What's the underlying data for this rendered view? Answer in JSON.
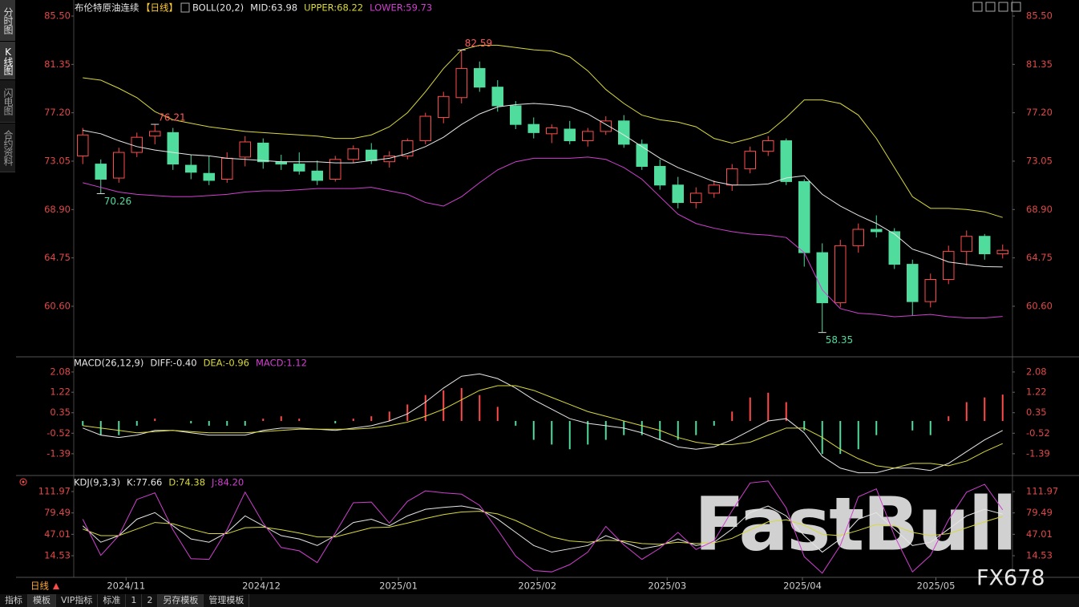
{
  "sidebar": [
    "分时图",
    "K线图",
    "闪电图",
    "合约资料"
  ],
  "period": "日线",
  "toolbar": [
    "指标",
    "模板",
    "VIP指标",
    "标准",
    "1",
    "2",
    "另存模板",
    "管理模板"
  ],
  "watermark": [
    "FastBull",
    "FX678"
  ],
  "chart_data": [
    {
      "type": "candlestick",
      "title": "布伦特原油连续",
      "subtitle": "【日线】",
      "indicator": "BOLL(20,2)",
      "up_color": "#ff4a4a",
      "down_color": "#4fdc9c",
      "xlim": [
        -0.5,
        51.5
      ],
      "ylim": [
        56.4,
        85.5
      ],
      "yticks": [
        {
          "value": 85.5,
          "label": "85.50"
        },
        81.35,
        {
          "value": 77.2,
          "label": "77.20"
        },
        73.05,
        {
          "value": 68.9,
          "label": "68.90"
        },
        64.75,
        {
          "value": 60.6,
          "label": "60.60"
        }
      ],
      "annotations": [
        82.59,
        76.21,
        70.26,
        58.35
      ],
      "candles": [
        [
          73.5,
          75.9,
          72.8,
          75.3
        ],
        [
          72.8,
          73.2,
          70.26,
          71.5
        ],
        [
          71.6,
          74.2,
          71.2,
          73.8
        ],
        [
          73.8,
          75.5,
          73.4,
          75.1
        ],
        [
          75.2,
          76.21,
          74.5,
          75.6
        ],
        [
          75.5,
          75.9,
          72.3,
          72.8
        ],
        [
          72.7,
          73.6,
          71.5,
          72.1
        ],
        [
          72.0,
          73.5,
          71.0,
          71.4
        ],
        [
          71.5,
          73.8,
          71.2,
          73.3
        ],
        [
          73.4,
          75.2,
          72.6,
          74.7
        ],
        [
          74.6,
          75.0,
          72.4,
          73.0
        ],
        [
          73.0,
          73.6,
          72.3,
          72.8
        ],
        [
          72.8,
          73.8,
          71.9,
          72.2
        ],
        [
          72.2,
          73.1,
          71.0,
          71.4
        ],
        [
          71.5,
          73.5,
          71.3,
          73.2
        ],
        [
          73.2,
          74.4,
          72.9,
          74.1
        ],
        [
          74.0,
          74.6,
          72.8,
          73.1
        ],
        [
          73.0,
          73.9,
          72.5,
          73.5
        ],
        [
          73.5,
          75.0,
          73.2,
          74.8
        ],
        [
          74.8,
          77.2,
          74.5,
          76.9
        ],
        [
          76.8,
          79.0,
          76.3,
          78.6
        ],
        [
          78.5,
          82.59,
          78.0,
          81.0
        ],
        [
          81.0,
          81.6,
          79.0,
          79.4
        ],
        [
          79.4,
          80.0,
          77.3,
          77.8
        ],
        [
          77.8,
          78.2,
          75.8,
          76.2
        ],
        [
          76.2,
          76.8,
          75.0,
          75.5
        ],
        [
          75.4,
          76.2,
          74.6,
          75.9
        ],
        [
          75.8,
          76.5,
          74.5,
          74.8
        ],
        [
          74.8,
          75.9,
          74.3,
          75.6
        ],
        [
          75.6,
          76.9,
          75.3,
          76.5
        ],
        [
          76.5,
          77.0,
          74.2,
          74.5
        ],
        [
          74.5,
          74.9,
          72.3,
          72.6
        ],
        [
          72.6,
          73.2,
          70.6,
          71.0
        ],
        [
          71.0,
          71.7,
          69.0,
          69.5
        ],
        [
          69.5,
          70.8,
          69.0,
          70.3
        ],
        [
          70.3,
          71.4,
          69.9,
          71.0
        ],
        [
          71.0,
          72.8,
          70.5,
          72.4
        ],
        [
          72.4,
          74.3,
          72.0,
          73.9
        ],
        [
          73.9,
          75.2,
          73.5,
          74.8
        ],
        [
          74.8,
          75.0,
          71.0,
          71.3
        ],
        [
          71.3,
          71.5,
          64.0,
          65.2
        ],
        [
          65.2,
          66.0,
          58.35,
          60.9
        ],
        [
          60.9,
          66.3,
          60.5,
          65.8
        ],
        [
          65.8,
          67.7,
          65.2,
          67.2
        ],
        [
          67.2,
          68.4,
          66.5,
          67.0
        ],
        [
          67.0,
          67.3,
          63.8,
          64.2
        ],
        [
          64.2,
          64.6,
          59.8,
          61.0
        ],
        [
          61.0,
          63.4,
          60.5,
          62.9
        ],
        [
          62.9,
          65.8,
          62.5,
          65.3
        ],
        [
          65.3,
          67.1,
          64.1,
          66.6
        ],
        [
          66.6,
          66.8,
          64.6,
          65.1
        ],
        [
          65.1,
          65.9,
          64.7,
          65.4
        ]
      ],
      "series": [
        {
          "name": "MID:63.98",
          "color": "#e6e6e6",
          "values": [
            75.7,
            75.4,
            74.8,
            74.3,
            74.0,
            73.8,
            73.6,
            73.5,
            73.3,
            73.2,
            73.1,
            73.0,
            73.0,
            73.0,
            72.9,
            72.9,
            73.1,
            73.3,
            73.7,
            74.3,
            75.1,
            76.2,
            77.1,
            77.7,
            77.9,
            78.0,
            77.9,
            77.7,
            77.1,
            76.2,
            75.3,
            74.3,
            73.3,
            72.5,
            71.9,
            71.3,
            71.0,
            71.0,
            71.1,
            71.6,
            71.8,
            70.2,
            69.2,
            68.4,
            67.7,
            66.8,
            65.5,
            65.0,
            64.4,
            64.2,
            64.0,
            63.98
          ]
        },
        {
          "name": "UPPER:68.22",
          "color": "#d9d93a",
          "values": [
            80.2,
            80.0,
            79.3,
            78.5,
            77.3,
            76.6,
            76.3,
            76.0,
            75.8,
            75.6,
            75.5,
            75.4,
            75.3,
            75.2,
            75.0,
            75.0,
            75.3,
            76.0,
            77.2,
            79.0,
            81.0,
            82.6,
            83.0,
            83.0,
            82.8,
            82.6,
            82.5,
            82.0,
            80.8,
            79.2,
            78.0,
            77.0,
            76.6,
            76.4,
            76.0,
            75.0,
            74.6,
            75.0,
            75.5,
            76.8,
            78.3,
            78.3,
            78.0,
            77.0,
            75.0,
            72.5,
            70.0,
            69.0,
            69.0,
            68.9,
            68.7,
            68.22
          ]
        },
        {
          "name": "LOWER:59.73",
          "color": "#d040d0",
          "values": [
            71.2,
            70.8,
            70.4,
            70.2,
            70.1,
            70.0,
            70.0,
            70.1,
            70.2,
            70.4,
            70.5,
            70.5,
            70.6,
            70.7,
            70.7,
            70.7,
            70.8,
            70.5,
            70.2,
            69.5,
            69.2,
            70.0,
            71.2,
            72.3,
            73.0,
            73.3,
            73.3,
            73.3,
            73.4,
            73.2,
            72.5,
            71.5,
            70.0,
            68.5,
            67.7,
            67.3,
            67.0,
            66.8,
            66.7,
            66.5,
            65.2,
            62.0,
            60.4,
            60.0,
            59.9,
            59.7,
            59.8,
            59.9,
            59.7,
            59.6,
            59.6,
            59.73
          ]
        }
      ]
    },
    {
      "type": "macd",
      "indicator": "MACD(26,12,9)",
      "xlim": [
        -0.5,
        51.5
      ],
      "ylim": [
        -2.28,
        2.69
      ],
      "yticks": [
        2.08,
        1.22,
        0.35,
        -0.52,
        -1.39
      ],
      "up_color": "#ff4a4a",
      "down_color": "#4fdc9c",
      "series": [
        {
          "name": "DIFF:-0.40",
          "color": "#e6e6e6",
          "values": [
            -0.3,
            -0.6,
            -0.7,
            -0.6,
            -0.4,
            -0.4,
            -0.5,
            -0.6,
            -0.6,
            -0.6,
            -0.4,
            -0.3,
            -0.3,
            -0.35,
            -0.4,
            -0.3,
            -0.2,
            0.0,
            0.3,
            0.8,
            1.4,
            1.9,
            2.0,
            1.8,
            1.4,
            0.9,
            0.5,
            0.1,
            -0.1,
            -0.2,
            -0.3,
            -0.5,
            -0.8,
            -1.1,
            -1.2,
            -1.1,
            -0.8,
            -0.4,
            0.0,
            0.1,
            -0.5,
            -1.5,
            -2.0,
            -2.2,
            -2.2,
            -2.0,
            -2.0,
            -2.1,
            -1.8,
            -1.3,
            -0.8,
            -0.4
          ]
        },
        {
          "name": "DEA:-0.96",
          "color": "#d9d93a",
          "values": [
            -0.2,
            -0.3,
            -0.4,
            -0.5,
            -0.45,
            -0.4,
            -0.45,
            -0.5,
            -0.5,
            -0.5,
            -0.45,
            -0.4,
            -0.35,
            -0.35,
            -0.35,
            -0.35,
            -0.3,
            -0.2,
            -0.05,
            0.2,
            0.5,
            0.9,
            1.3,
            1.5,
            1.5,
            1.3,
            1.0,
            0.7,
            0.4,
            0.2,
            0.0,
            -0.2,
            -0.4,
            -0.7,
            -0.9,
            -1.0,
            -1.0,
            -0.9,
            -0.6,
            -0.3,
            -0.3,
            -0.7,
            -1.2,
            -1.6,
            -1.9,
            -2.0,
            -1.8,
            -1.8,
            -1.9,
            -1.7,
            -1.3,
            -0.96
          ]
        }
      ],
      "histogram": {
        "name": "MACD:1.12",
        "color": "#d040d0",
        "values": [
          -0.2,
          -0.6,
          -0.6,
          -0.2,
          0.1,
          0.0,
          -0.1,
          -0.2,
          -0.2,
          -0.2,
          0.1,
          0.2,
          0.1,
          0.0,
          -0.1,
          0.1,
          0.2,
          0.4,
          0.7,
          1.1,
          1.3,
          1.4,
          1.1,
          0.6,
          -0.2,
          -0.8,
          -1.0,
          -1.2,
          -1.0,
          -0.8,
          -0.6,
          -0.6,
          -0.8,
          -0.8,
          -0.6,
          -0.2,
          0.4,
          1.0,
          1.2,
          0.8,
          -0.4,
          -1.4,
          -1.4,
          -1.2,
          -0.6,
          0.0,
          -0.4,
          -0.6,
          0.2,
          0.8,
          1.0,
          1.12
        ]
      }
    },
    {
      "type": "line",
      "indicator": "KDJ(9,3,3)",
      "xlim": [
        -0.5,
        51.5
      ],
      "ylim": [
        -18.3,
        133.9
      ],
      "yticks": [
        111.97,
        79.49,
        47.01,
        14.53
      ],
      "xticks": [
        {
          "value": 2.4,
          "label": "2024/11"
        },
        {
          "value": 9.9,
          "label": "2024/12"
        },
        {
          "value": 17.5,
          "label": "2025/01"
        },
        {
          "value": 25.2,
          "label": "2025/02"
        },
        {
          "value": 32.4,
          "label": "2025/03"
        },
        {
          "value": 39.9,
          "label": "2025/04"
        },
        {
          "value": 47.3,
          "label": "2025/05"
        }
      ],
      "series": [
        {
          "name": "K:77.66",
          "color": "#e6e6e6",
          "values": [
            60,
            35,
            45,
            70,
            80,
            60,
            40,
            35,
            50,
            75,
            60,
            45,
            40,
            30,
            45,
            65,
            70,
            60,
            75,
            85,
            88,
            90,
            85,
            70,
            50,
            30,
            20,
            25,
            30,
            45,
            35,
            25,
            30,
            40,
            30,
            35,
            55,
            80,
            90,
            75,
            45,
            20,
            40,
            70,
            80,
            55,
            30,
            35,
            55,
            75,
            85,
            77.66
          ]
        },
        {
          "name": "D:74.38",
          "color": "#d9d93a",
          "values": [
            55,
            45,
            45,
            55,
            65,
            63,
            55,
            48,
            48,
            57,
            58,
            54,
            49,
            43,
            43,
            50,
            57,
            58,
            64,
            71,
            77,
            81,
            82,
            78,
            68,
            55,
            43,
            37,
            35,
            38,
            37,
            33,
            32,
            35,
            33,
            34,
            41,
            54,
            66,
            69,
            61,
            47,
            45,
            53,
            62,
            60,
            50,
            45,
            48,
            57,
            66,
            74.38
          ]
        },
        {
          "name": "J:84.20",
          "color": "#d040d0",
          "values": [
            70,
            15,
            45,
            100,
            110,
            54,
            10,
            9,
            54,
            111,
            64,
            27,
            22,
            4,
            49,
            95,
            96,
            64,
            97,
            113,
            110,
            108,
            91,
            54,
            14,
            -8,
            -10,
            1,
            20,
            59,
            31,
            9,
            26,
            50,
            24,
            37,
            83,
            125,
            128,
            87,
            13,
            -12,
            30,
            104,
            116,
            45,
            -10,
            15,
            69,
            111,
            123,
            84.2
          ]
        }
      ]
    }
  ]
}
